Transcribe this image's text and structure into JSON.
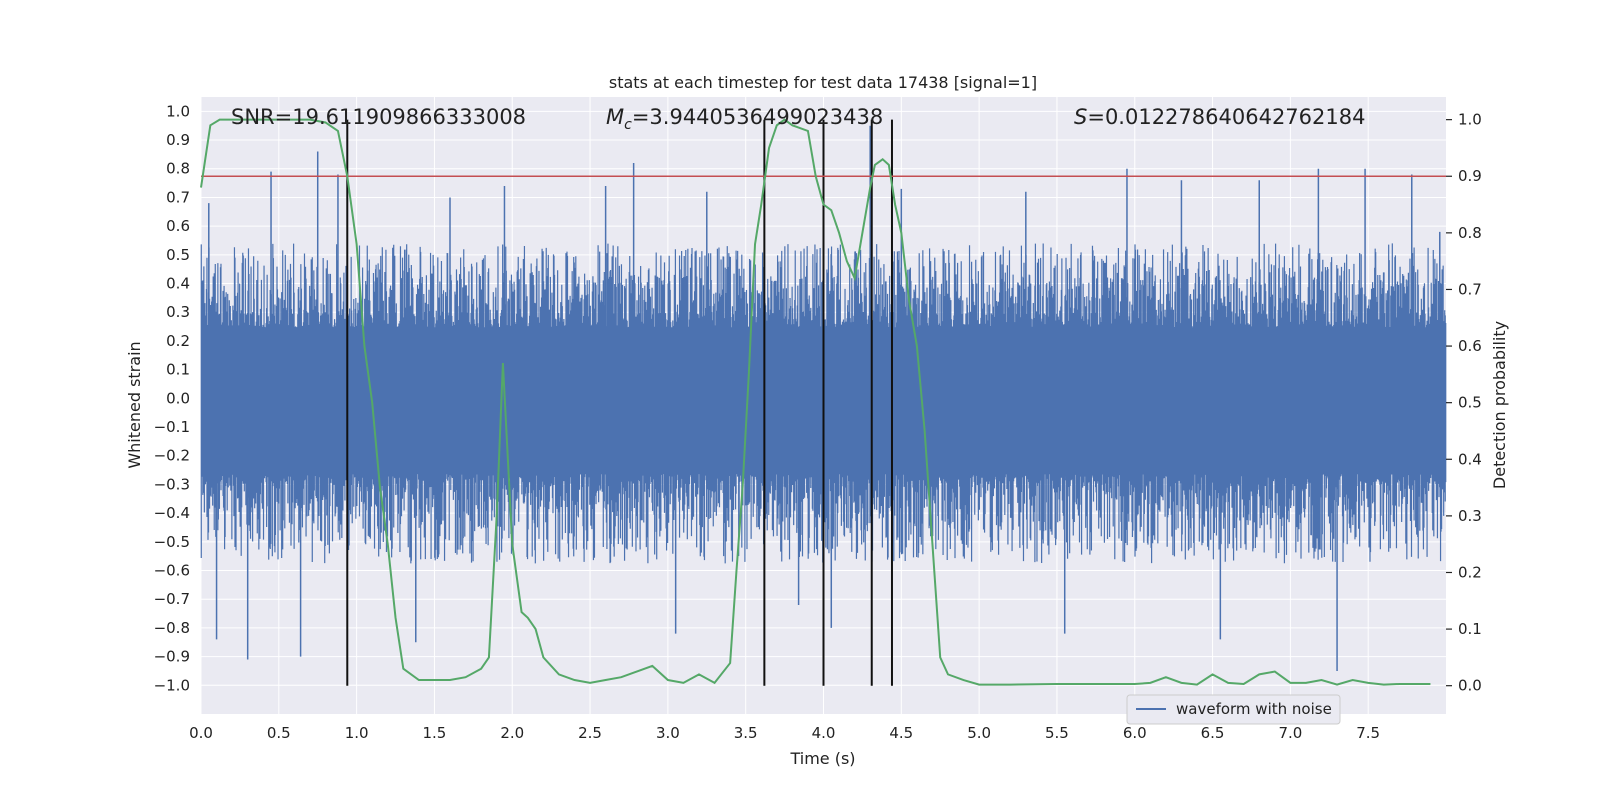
{
  "chart_data": {
    "type": "line",
    "title": "stats at each timestep for test data 17438 [signal=1]",
    "xlabel": "Time (s)",
    "ylabel_left": "Whitened strain",
    "ylabel_right": "Detection probability",
    "xlim": [
      0.0,
      8.0
    ],
    "ylim_left": [
      -1.1,
      1.05
    ],
    "ylim_right": [
      -0.05,
      1.04
    ],
    "xticks": [
      0.0,
      0.5,
      1.0,
      1.5,
      2.0,
      2.5,
      3.0,
      3.5,
      4.0,
      4.5,
      5.0,
      5.5,
      6.0,
      6.5,
      7.0,
      7.5
    ],
    "xtick_labels": [
      "0.0",
      "0.5",
      "1.0",
      "1.5",
      "2.0",
      "2.5",
      "3.0",
      "3.5",
      "4.0",
      "4.5",
      "5.0",
      "5.5",
      "6.0",
      "6.5",
      "7.0",
      "7.5"
    ],
    "yticks_left": [
      1.0,
      0.9,
      0.8,
      0.7,
      0.6,
      0.5,
      0.4,
      0.3,
      0.2,
      0.1,
      0.0,
      -0.1,
      -0.2,
      -0.3,
      -0.4,
      -0.5,
      -0.6,
      -0.7,
      -0.8,
      -0.9,
      -1.0
    ],
    "ytick_labels_left": [
      "1.0",
      "0.9",
      "0.8",
      "0.7",
      "0.6",
      "0.5",
      "0.4",
      "0.3",
      "0.2",
      "0.1",
      "0.0",
      "−0.1",
      "−0.2",
      "−0.3",
      "−0.4",
      "−0.5",
      "−0.6",
      "−0.7",
      "−0.8",
      "−0.9",
      "−1.0"
    ],
    "yticks_right": [
      1.0,
      0.9,
      0.8,
      0.7,
      0.6,
      0.5,
      0.4,
      0.3,
      0.2,
      0.1,
      0.0
    ],
    "ytick_labels_right": [
      "1.0",
      "0.9",
      "0.8",
      "0.7",
      "0.6",
      "0.5",
      "0.4",
      "0.3",
      "0.2",
      "0.1",
      "0.0"
    ],
    "annotations": {
      "snr": "SNR=19.611909866333008",
      "mc_symbol": "M",
      "mc_subscript": "c",
      "mc_value": "=3.9440536499023438",
      "s_symbol": "S",
      "s_value": "=0.012278640642762184"
    },
    "threshold": {
      "value": 0.9,
      "color": "#c44e52"
    },
    "vertical_lines_x": [
      0.94,
      3.62,
      4.0,
      4.31,
      4.44
    ],
    "waveform": {
      "name": "waveform with noise",
      "color": "#4c72b0",
      "typical_envelope_upper": 0.45,
      "typical_envelope_lower": -0.48,
      "peaks": [
        [
          0.05,
          0.68
        ],
        [
          0.1,
          -0.84
        ],
        [
          0.3,
          -0.91
        ],
        [
          0.45,
          0.79
        ],
        [
          0.64,
          -0.9
        ],
        [
          0.75,
          0.86
        ],
        [
          0.88,
          0.78
        ],
        [
          1.38,
          -0.85
        ],
        [
          1.6,
          0.7
        ],
        [
          1.95,
          0.74
        ],
        [
          2.6,
          0.74
        ],
        [
          2.78,
          0.82
        ],
        [
          3.05,
          -0.82
        ],
        [
          3.25,
          0.72
        ],
        [
          3.84,
          -0.72
        ],
        [
          4.0,
          -0.73
        ],
        [
          4.05,
          -0.8
        ],
        [
          4.3,
          0.95
        ],
        [
          4.5,
          0.73
        ],
        [
          5.3,
          0.72
        ],
        [
          5.55,
          -0.82
        ],
        [
          5.95,
          0.8
        ],
        [
          6.3,
          0.76
        ],
        [
          6.55,
          -0.84
        ],
        [
          6.8,
          0.76
        ],
        [
          7.18,
          0.8
        ],
        [
          7.3,
          -0.95
        ],
        [
          7.48,
          0.8
        ],
        [
          7.78,
          0.78
        ],
        [
          7.96,
          0.58
        ]
      ]
    },
    "detection_probability": {
      "color": "#55a868",
      "x": [
        0.0,
        0.06,
        0.12,
        0.3,
        0.5,
        0.7,
        0.8,
        0.88,
        0.94,
        1.0,
        1.05,
        1.1,
        1.15,
        1.2,
        1.25,
        1.3,
        1.4,
        1.5,
        1.6,
        1.7,
        1.8,
        1.85,
        1.9,
        1.94,
        2.0,
        2.06,
        2.1,
        2.15,
        2.2,
        2.3,
        2.4,
        2.5,
        2.6,
        2.7,
        2.8,
        2.9,
        3.0,
        3.1,
        3.2,
        3.3,
        3.4,
        3.44,
        3.48,
        3.52,
        3.56,
        3.6,
        3.65,
        3.7,
        3.75,
        3.8,
        3.9,
        3.95,
        4.0,
        4.05,
        4.1,
        4.15,
        4.2,
        4.25,
        4.3,
        4.33,
        4.38,
        4.42,
        4.46,
        4.5,
        4.55,
        4.6,
        4.65,
        4.7,
        4.75,
        4.8,
        4.9,
        5.0,
        5.2,
        5.5,
        6.0,
        6.1,
        6.2,
        6.3,
        6.4,
        6.5,
        6.6,
        6.7,
        6.8,
        6.9,
        7.0,
        7.1,
        7.2,
        7.3,
        7.4,
        7.5,
        7.6,
        7.7,
        7.9
      ],
      "values": [
        0.88,
        0.99,
        1.0,
        1.0,
        1.0,
        1.0,
        0.995,
        0.98,
        0.9,
        0.78,
        0.6,
        0.5,
        0.35,
        0.25,
        0.12,
        0.03,
        0.01,
        0.01,
        0.01,
        0.015,
        0.03,
        0.05,
        0.3,
        0.57,
        0.25,
        0.13,
        0.12,
        0.1,
        0.05,
        0.02,
        0.01,
        0.005,
        0.01,
        0.015,
        0.025,
        0.035,
        0.01,
        0.005,
        0.02,
        0.005,
        0.04,
        0.2,
        0.35,
        0.55,
        0.78,
        0.85,
        0.95,
        0.99,
        1.0,
        0.99,
        0.98,
        0.9,
        0.85,
        0.84,
        0.8,
        0.75,
        0.72,
        0.8,
        0.88,
        0.92,
        0.93,
        0.92,
        0.85,
        0.8,
        0.68,
        0.6,
        0.45,
        0.25,
        0.05,
        0.02,
        0.01,
        0.002,
        0.002,
        0.003,
        0.003,
        0.005,
        0.015,
        0.005,
        0.002,
        0.02,
        0.005,
        0.003,
        0.02,
        0.025,
        0.005,
        0.005,
        0.01,
        0.002,
        0.01,
        0.005,
        0.002,
        0.003,
        0.003
      ]
    },
    "legend": {
      "position": "lower-right",
      "entries": [
        "waveform with noise"
      ]
    }
  }
}
